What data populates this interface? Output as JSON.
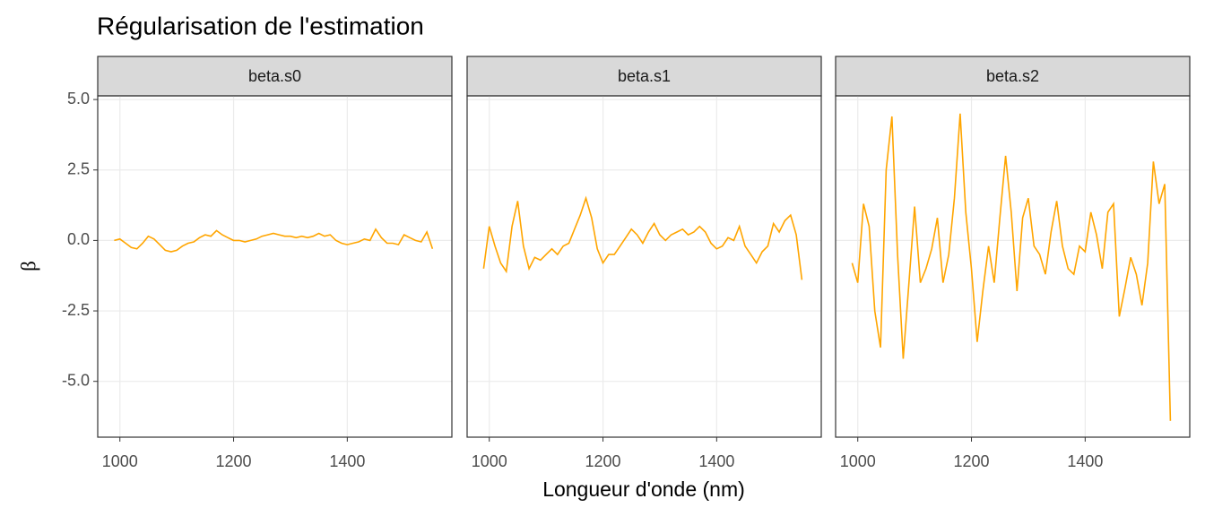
{
  "chart_data": {
    "type": "line",
    "title": "Régularisation de l'estimation",
    "xlabel": "Longueur d'onde (nm)",
    "ylabel": "β",
    "color": "#FFA500",
    "grid": true,
    "xlim": [
      961,
      1584
    ],
    "ylim": [
      -6.98,
      5.13
    ],
    "xticks": [
      1000,
      1200,
      1400
    ],
    "yticks": [
      {
        "value": 5,
        "label": "5.0"
      },
      {
        "value": 2.5,
        "label": "2.5"
      },
      {
        "value": 0,
        "label": "0.0"
      },
      {
        "value": -2.5,
        "label": "-2.5"
      },
      {
        "value": -5,
        "label": "-5.0"
      }
    ],
    "x": [
      990,
      1000,
      1010,
      1020,
      1030,
      1040,
      1050,
      1060,
      1070,
      1080,
      1090,
      1100,
      1110,
      1120,
      1130,
      1140,
      1150,
      1160,
      1170,
      1180,
      1190,
      1200,
      1210,
      1220,
      1230,
      1240,
      1250,
      1260,
      1270,
      1280,
      1290,
      1300,
      1310,
      1320,
      1330,
      1340,
      1350,
      1360,
      1370,
      1380,
      1390,
      1400,
      1410,
      1420,
      1430,
      1440,
      1450,
      1460,
      1470,
      1480,
      1490,
      1500,
      1510,
      1520,
      1530,
      1540,
      1550
    ],
    "facets": [
      {
        "name": "beta.s0",
        "values": [
          0.0,
          0.05,
          -0.1,
          -0.25,
          -0.3,
          -0.1,
          0.15,
          0.05,
          -0.15,
          -0.35,
          -0.4,
          -0.35,
          -0.2,
          -0.1,
          -0.05,
          0.1,
          0.2,
          0.15,
          0.35,
          0.2,
          0.1,
          0.0,
          0.0,
          -0.05,
          0.0,
          0.05,
          0.15,
          0.2,
          0.25,
          0.2,
          0.15,
          0.15,
          0.1,
          0.15,
          0.1,
          0.15,
          0.25,
          0.15,
          0.2,
          0.0,
          -0.1,
          -0.15,
          -0.1,
          -0.05,
          0.05,
          0.0,
          0.4,
          0.1,
          -0.1,
          -0.1,
          -0.15,
          0.2,
          0.1,
          0.0,
          -0.05,
          0.3,
          -0.3
        ]
      },
      {
        "name": "beta.s1",
        "values": [
          -1.0,
          0.5,
          -0.2,
          -0.8,
          -1.1,
          0.5,
          1.4,
          -0.2,
          -1.0,
          -0.6,
          -0.7,
          -0.5,
          -0.3,
          -0.5,
          -0.2,
          -0.1,
          0.4,
          0.9,
          1.5,
          0.8,
          -0.3,
          -0.8,
          -0.5,
          -0.5,
          -0.2,
          0.1,
          0.4,
          0.2,
          -0.1,
          0.3,
          0.6,
          0.2,
          0.0,
          0.2,
          0.3,
          0.4,
          0.2,
          0.3,
          0.5,
          0.3,
          -0.1,
          -0.3,
          -0.2,
          0.1,
          0.0,
          0.5,
          -0.2,
          -0.5,
          -0.8,
          -0.4,
          -0.2,
          0.6,
          0.3,
          0.7,
          0.9,
          0.2,
          -1.4
        ]
      },
      {
        "name": "beta.s2",
        "values": [
          -0.8,
          -1.5,
          1.3,
          0.5,
          -2.5,
          -3.8,
          2.5,
          4.4,
          -0.5,
          -4.2,
          -1.5,
          1.2,
          -1.5,
          -1.0,
          -0.3,
          0.8,
          -1.5,
          -0.5,
          1.5,
          4.5,
          1.0,
          -1.0,
          -3.6,
          -1.8,
          -0.2,
          -1.5,
          0.8,
          3.0,
          1.0,
          -1.8,
          0.8,
          1.5,
          -0.2,
          -0.5,
          -1.2,
          0.3,
          1.4,
          -0.2,
          -1.0,
          -1.2,
          -0.2,
          -0.4,
          1.0,
          0.2,
          -1.0,
          1.0,
          1.3,
          -2.7,
          -1.7,
          -0.6,
          -1.2,
          -2.3,
          -0.8,
          2.8,
          1.3,
          2.0,
          -6.4
        ]
      }
    ]
  }
}
